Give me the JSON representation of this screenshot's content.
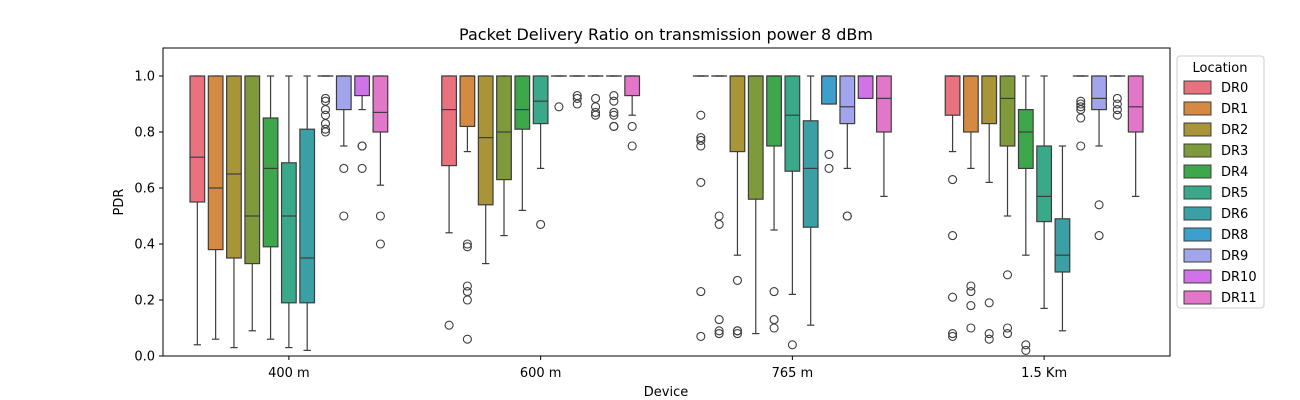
{
  "chart_data": {
    "type": "box",
    "title": "Packet Delivery Ratio on transmission power 8 dBm",
    "xlabel": "Device",
    "ylabel": "PDR",
    "ylim": [
      0,
      1.1
    ],
    "y_ticks": [
      "0.0",
      "0.2",
      "0.4",
      "0.6",
      "0.8",
      "1.0"
    ],
    "categories": [
      "400 m",
      "600 m",
      "765 m",
      "1.5 Km"
    ],
    "legend": {
      "title": "Location",
      "position": "right"
    },
    "series": [
      {
        "name": "DR0",
        "color": "#e8737f",
        "boxes": [
          {
            "whislo": 0.04,
            "q1": 0.55,
            "med": 0.71,
            "q3": 1.0,
            "whishi": 1.0,
            "fliers": []
          },
          {
            "whislo": 0.44,
            "q1": 0.68,
            "med": 0.88,
            "q3": 1.0,
            "whishi": 1.0,
            "fliers": [
              0.11
            ]
          },
          {
            "whislo": 1.0,
            "q1": 1.0,
            "med": 1.0,
            "q3": 1.0,
            "whishi": 1.0,
            "fliers": [
              0.86,
              0.78,
              0.77,
              0.75,
              0.62,
              0.23,
              0.07
            ]
          },
          {
            "whislo": 0.73,
            "q1": 0.86,
            "med": 1.0,
            "q3": 1.0,
            "whishi": 1.0,
            "fliers": [
              0.63,
              0.43,
              0.21,
              0.08,
              0.07
            ]
          }
        ]
      },
      {
        "name": "DR1",
        "color": "#d48a43",
        "boxes": [
          {
            "whislo": 0.06,
            "q1": 0.38,
            "med": 0.6,
            "q3": 1.0,
            "whishi": 1.0,
            "fliers": []
          },
          {
            "whislo": 0.73,
            "q1": 0.82,
            "med": 1.0,
            "q3": 1.0,
            "whishi": 1.0,
            "fliers": [
              0.4,
              0.39,
              0.25,
              0.23,
              0.2,
              0.06
            ]
          },
          {
            "whislo": 1.0,
            "q1": 1.0,
            "med": 1.0,
            "q3": 1.0,
            "whishi": 1.0,
            "fliers": [
              0.5,
              0.47,
              0.13,
              0.09,
              0.08
            ]
          },
          {
            "whislo": 0.67,
            "q1": 0.8,
            "med": 1.0,
            "q3": 1.0,
            "whishi": 1.0,
            "fliers": [
              0.25,
              0.23,
              0.18,
              0.1
            ]
          }
        ]
      },
      {
        "name": "DR2",
        "color": "#a99438",
        "boxes": [
          {
            "whislo": 0.03,
            "q1": 0.35,
            "med": 0.65,
            "q3": 1.0,
            "whishi": 1.0,
            "fliers": []
          },
          {
            "whislo": 0.33,
            "q1": 0.54,
            "med": 0.78,
            "q3": 1.0,
            "whishi": 1.0,
            "fliers": []
          },
          {
            "whislo": 0.36,
            "q1": 0.73,
            "med": 1.0,
            "q3": 1.0,
            "whishi": 1.0,
            "fliers": [
              0.27,
              0.09,
              0.09,
              0.08
            ]
          },
          {
            "whislo": 0.62,
            "q1": 0.83,
            "med": 1.0,
            "q3": 1.0,
            "whishi": 1.0,
            "fliers": [
              0.19,
              0.08,
              0.06
            ]
          }
        ]
      },
      {
        "name": "DR3",
        "color": "#7f9a3b",
        "boxes": [
          {
            "whislo": 0.09,
            "q1": 0.33,
            "med": 0.5,
            "q3": 1.0,
            "whishi": 1.0,
            "fliers": []
          },
          {
            "whislo": 0.43,
            "q1": 0.63,
            "med": 0.8,
            "q3": 1.0,
            "whishi": 1.0,
            "fliers": []
          },
          {
            "whislo": 0.08,
            "q1": 0.56,
            "med": 1.0,
            "q3": 1.0,
            "whishi": 1.0,
            "fliers": []
          },
          {
            "whislo": 0.5,
            "q1": 0.75,
            "med": 0.92,
            "q3": 1.0,
            "whishi": 1.0,
            "fliers": [
              0.29,
              0.1,
              0.08
            ]
          }
        ]
      },
      {
        "name": "DR4",
        "color": "#3fa74b",
        "boxes": [
          {
            "whislo": 0.06,
            "q1": 0.39,
            "med": 0.67,
            "q3": 0.85,
            "whishi": 1.0,
            "fliers": []
          },
          {
            "whislo": 0.52,
            "q1": 0.81,
            "med": 0.88,
            "q3": 1.0,
            "whishi": 1.0,
            "fliers": []
          },
          {
            "whislo": 0.45,
            "q1": 0.75,
            "med": 1.0,
            "q3": 1.0,
            "whishi": 1.0,
            "fliers": [
              0.23,
              0.13,
              0.1
            ]
          },
          {
            "whislo": 0.36,
            "q1": 0.67,
            "med": 0.8,
            "q3": 0.88,
            "whishi": 1.0,
            "fliers": [
              0.04,
              0.02
            ]
          }
        ]
      },
      {
        "name": "DR5",
        "color": "#3aa98a",
        "boxes": [
          {
            "whislo": 0.03,
            "q1": 0.19,
            "med": 0.5,
            "q3": 0.69,
            "whishi": 1.0,
            "fliers": []
          },
          {
            "whislo": 0.67,
            "q1": 0.83,
            "med": 0.91,
            "q3": 1.0,
            "whishi": 1.0,
            "fliers": [
              0.47
            ]
          },
          {
            "whislo": 0.22,
            "q1": 0.66,
            "med": 0.86,
            "q3": 1.0,
            "whishi": 1.0,
            "fliers": [
              0.04
            ]
          },
          {
            "whislo": 0.17,
            "q1": 0.48,
            "med": 0.57,
            "q3": 0.75,
            "whishi": 1.0,
            "fliers": []
          }
        ]
      },
      {
        "name": "DR6",
        "color": "#3aa0a6",
        "boxes": [
          {
            "whislo": 0.02,
            "q1": 0.19,
            "med": 0.35,
            "q3": 0.81,
            "whishi": 1.0,
            "fliers": []
          },
          {
            "whislo": 1.0,
            "q1": 1.0,
            "med": 1.0,
            "q3": 1.0,
            "whishi": 1.0,
            "fliers": [
              0.89
            ]
          },
          {
            "whislo": 0.11,
            "q1": 0.46,
            "med": 0.67,
            "q3": 0.84,
            "whishi": 1.0,
            "fliers": []
          },
          {
            "whislo": 0.09,
            "q1": 0.3,
            "med": 0.36,
            "q3": 0.49,
            "whishi": 0.75,
            "fliers": []
          }
        ]
      },
      {
        "name": "DR8",
        "color": "#3d9fcb",
        "boxes": [
          {
            "whislo": 1.0,
            "q1": 1.0,
            "med": 1.0,
            "q3": 1.0,
            "whishi": 1.0,
            "fliers": [
              0.92,
              0.91,
              0.88,
              0.86,
              0.83,
              0.81,
              0.8
            ]
          },
          {
            "whislo": 1.0,
            "q1": 1.0,
            "med": 1.0,
            "q3": 1.0,
            "whishi": 1.0,
            "fliers": [
              0.93,
              0.92,
              0.9
            ]
          },
          {
            "whislo": 0.9,
            "q1": 0.9,
            "med": 1.0,
            "q3": 1.0,
            "whishi": 1.0,
            "fliers": [
              0.72,
              0.67
            ]
          },
          {
            "whislo": 1.0,
            "q1": 1.0,
            "med": 1.0,
            "q3": 1.0,
            "whishi": 1.0,
            "fliers": [
              0.91,
              0.9,
              0.89,
              0.88,
              0.85,
              0.75
            ]
          }
        ]
      },
      {
        "name": "DR9",
        "color": "#a2a5ec",
        "boxes": [
          {
            "whislo": 0.75,
            "q1": 0.88,
            "med": 1.0,
            "q3": 1.0,
            "whishi": 1.0,
            "fliers": [
              0.67,
              0.5
            ]
          },
          {
            "whislo": 1.0,
            "q1": 1.0,
            "med": 1.0,
            "q3": 1.0,
            "whishi": 1.0,
            "fliers": [
              0.92,
              0.89,
              0.87,
              0.86
            ]
          },
          {
            "whislo": 0.67,
            "q1": 0.83,
            "med": 0.89,
            "q3": 1.0,
            "whishi": 1.0,
            "fliers": [
              0.5,
              0.5
            ]
          },
          {
            "whislo": 0.75,
            "q1": 0.88,
            "med": 0.92,
            "q3": 1.0,
            "whishi": 1.0,
            "fliers": [
              0.54,
              0.43
            ]
          }
        ]
      },
      {
        "name": "DR10",
        "color": "#cf73e6",
        "boxes": [
          {
            "whislo": 0.88,
            "q1": 0.93,
            "med": 1.0,
            "q3": 1.0,
            "whishi": 1.0,
            "fliers": [
              0.75,
              0.75,
              0.67
            ]
          },
          {
            "whislo": 1.0,
            "q1": 1.0,
            "med": 1.0,
            "q3": 1.0,
            "whishi": 1.0,
            "fliers": [
              0.93,
              0.91,
              0.87,
              0.86,
              0.82,
              0.82
            ]
          },
          {
            "whislo": 0.92,
            "q1": 0.92,
            "med": 1.0,
            "q3": 1.0,
            "whishi": 1.0,
            "fliers": []
          },
          {
            "whislo": 1.0,
            "q1": 1.0,
            "med": 1.0,
            "q3": 1.0,
            "whishi": 1.0,
            "fliers": [
              0.92,
              0.9,
              0.88,
              0.86
            ]
          }
        ]
      },
      {
        "name": "DR11",
        "color": "#e276c9",
        "boxes": [
          {
            "whislo": 0.61,
            "q1": 0.8,
            "med": 0.87,
            "q3": 1.0,
            "whishi": 1.0,
            "fliers": [
              0.5,
              0.4
            ]
          },
          {
            "whislo": 0.86,
            "q1": 0.93,
            "med": 1.0,
            "q3": 1.0,
            "whishi": 1.0,
            "fliers": [
              0.82,
              0.75
            ]
          },
          {
            "whislo": 0.57,
            "q1": 0.8,
            "med": 0.92,
            "q3": 1.0,
            "whishi": 1.0,
            "fliers": []
          },
          {
            "whislo": 0.57,
            "q1": 0.8,
            "med": 0.89,
            "q3": 1.0,
            "whishi": 1.0,
            "fliers": []
          }
        ]
      }
    ]
  }
}
